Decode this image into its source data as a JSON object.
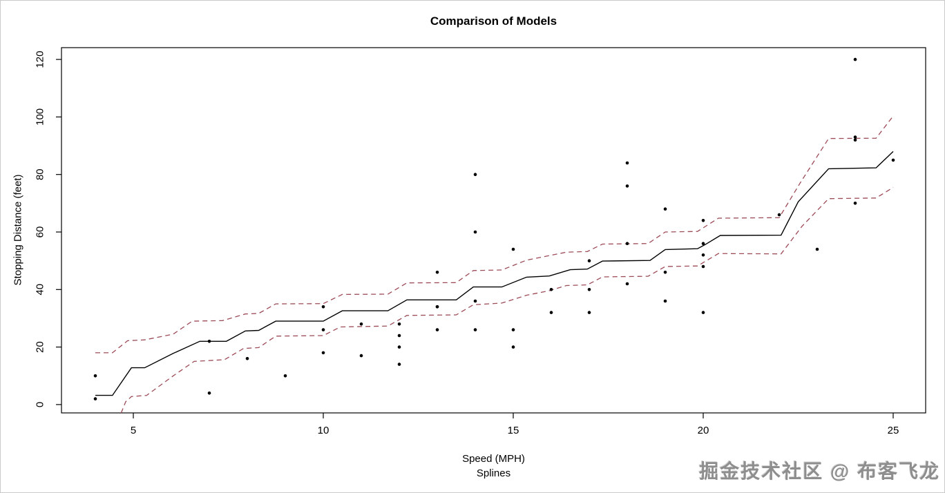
{
  "watermark": {
    "text": "掘金技术社区 @ 布客飞龙",
    "color": "#8e8e8e"
  },
  "chart_data": {
    "type": "scatter",
    "title": "Comparison of Models",
    "xlabel": "Speed (MPH)",
    "sublabel": "Splines",
    "ylabel": "Stopping Distance (feet)",
    "grid": false,
    "legend": "none",
    "xticks": [
      5,
      10,
      15,
      20,
      25
    ],
    "yticks": [
      0,
      20,
      40,
      60,
      80,
      100,
      120
    ],
    "xlim": [
      3.109,
      25.855
    ],
    "ylim": [
      -2.9,
      124.1
    ],
    "points_color": "#000000",
    "band_color": "#9c4a56",
    "points": [
      [
        4,
        2
      ],
      [
        4,
        10
      ],
      [
        7,
        4
      ],
      [
        7,
        22
      ],
      [
        8,
        16
      ],
      [
        9,
        10
      ],
      [
        10,
        18
      ],
      [
        10,
        26
      ],
      [
        10,
        34
      ],
      [
        11,
        17
      ],
      [
        11,
        28
      ],
      [
        12,
        14
      ],
      [
        12,
        20
      ],
      [
        12,
        24
      ],
      [
        12,
        28
      ],
      [
        13,
        26
      ],
      [
        13,
        34
      ],
      [
        13,
        34
      ],
      [
        13,
        46
      ],
      [
        14,
        26
      ],
      [
        14,
        36
      ],
      [
        14,
        60
      ],
      [
        14,
        80
      ],
      [
        15,
        20
      ],
      [
        15,
        26
      ],
      [
        15,
        54
      ],
      [
        16,
        32
      ],
      [
        16,
        40
      ],
      [
        17,
        32
      ],
      [
        17,
        40
      ],
      [
        17,
        50
      ],
      [
        18,
        42
      ],
      [
        18,
        56
      ],
      [
        18,
        76
      ],
      [
        18,
        84
      ],
      [
        19,
        36
      ],
      [
        19,
        46
      ],
      [
        19,
        68
      ],
      [
        20,
        32
      ],
      [
        20,
        48
      ],
      [
        20,
        52
      ],
      [
        20,
        56
      ],
      [
        20,
        64
      ],
      [
        22,
        66
      ],
      [
        23,
        54
      ],
      [
        24,
        70
      ],
      [
        24,
        92
      ],
      [
        24,
        93
      ],
      [
        24,
        120
      ],
      [
        25,
        85
      ]
    ],
    "series": [
      {
        "name": "spline-fit",
        "style": "solid",
        "color": "#000000",
        "width": 1.4,
        "points": [
          [
            4.0,
            3.2
          ],
          [
            4.45,
            3.2
          ],
          [
            4.95,
            12.8
          ],
          [
            5.3,
            12.8
          ],
          [
            6.05,
            17.8
          ],
          [
            6.75,
            22.0
          ],
          [
            7.45,
            22.0
          ],
          [
            7.95,
            25.6
          ],
          [
            8.3,
            25.8
          ],
          [
            8.75,
            29.0
          ],
          [
            10.0,
            29.0
          ],
          [
            10.5,
            32.6
          ],
          [
            11.7,
            32.6
          ],
          [
            12.2,
            36.4
          ],
          [
            13.5,
            36.4
          ],
          [
            13.95,
            40.9
          ],
          [
            14.7,
            40.9
          ],
          [
            15.35,
            44.3
          ],
          [
            15.95,
            44.7
          ],
          [
            16.5,
            46.9
          ],
          [
            16.95,
            47.1
          ],
          [
            17.35,
            49.9
          ],
          [
            18.6,
            50.1
          ],
          [
            19.0,
            53.9
          ],
          [
            19.85,
            54.2
          ],
          [
            20.05,
            55.6
          ],
          [
            20.45,
            58.8
          ],
          [
            22.05,
            58.9
          ],
          [
            22.5,
            70.5
          ],
          [
            23.3,
            82.0
          ],
          [
            24.55,
            82.3
          ],
          [
            25.0,
            88.0
          ]
        ]
      },
      {
        "name": "upper-confidence-band",
        "style": "dashed",
        "color": "#9c4a56",
        "width": 1.3,
        "points": [
          [
            4.0,
            18.0
          ],
          [
            4.45,
            18.0
          ],
          [
            4.85,
            22.2
          ],
          [
            5.3,
            22.5
          ],
          [
            6.05,
            24.5
          ],
          [
            6.55,
            29.0
          ],
          [
            7.35,
            29.2
          ],
          [
            7.95,
            31.5
          ],
          [
            8.3,
            31.7
          ],
          [
            8.75,
            35.0
          ],
          [
            10.0,
            35.1
          ],
          [
            10.5,
            38.3
          ],
          [
            11.7,
            38.4
          ],
          [
            12.2,
            42.3
          ],
          [
            13.5,
            42.4
          ],
          [
            13.95,
            46.6
          ],
          [
            14.7,
            46.8
          ],
          [
            15.35,
            50.2
          ],
          [
            15.95,
            51.8
          ],
          [
            16.4,
            53.0
          ],
          [
            16.95,
            53.2
          ],
          [
            17.35,
            55.8
          ],
          [
            18.55,
            56.0
          ],
          [
            19.0,
            60.0
          ],
          [
            19.85,
            60.2
          ],
          [
            20.4,
            64.8
          ],
          [
            22.0,
            65.0
          ],
          [
            22.55,
            77.0
          ],
          [
            23.3,
            92.5
          ],
          [
            24.55,
            92.6
          ],
          [
            25.0,
            100.3
          ]
        ]
      },
      {
        "name": "lower-confidence-band",
        "style": "dashed",
        "color": "#9c4a56",
        "width": 1.3,
        "points": [
          [
            4.68,
            -2.9
          ],
          [
            4.8,
            1.0
          ],
          [
            4.95,
            2.8
          ],
          [
            5.35,
            3.2
          ],
          [
            6.05,
            10.0
          ],
          [
            6.6,
            15.0
          ],
          [
            7.4,
            15.6
          ],
          [
            7.9,
            19.5
          ],
          [
            8.3,
            19.8
          ],
          [
            8.75,
            23.8
          ],
          [
            10.0,
            24.0
          ],
          [
            10.45,
            27.0
          ],
          [
            11.7,
            27.3
          ],
          [
            12.2,
            31.0
          ],
          [
            13.5,
            31.2
          ],
          [
            13.95,
            34.7
          ],
          [
            14.7,
            35.3
          ],
          [
            15.35,
            38.0
          ],
          [
            15.95,
            39.6
          ],
          [
            16.4,
            41.4
          ],
          [
            16.95,
            41.6
          ],
          [
            17.35,
            44.4
          ],
          [
            18.55,
            44.6
          ],
          [
            19.0,
            48.0
          ],
          [
            19.85,
            48.2
          ],
          [
            20.4,
            52.5
          ],
          [
            22.05,
            52.4
          ],
          [
            22.6,
            62.0
          ],
          [
            23.3,
            71.6
          ],
          [
            24.55,
            71.8
          ],
          [
            25.0,
            75.5
          ]
        ]
      }
    ]
  }
}
